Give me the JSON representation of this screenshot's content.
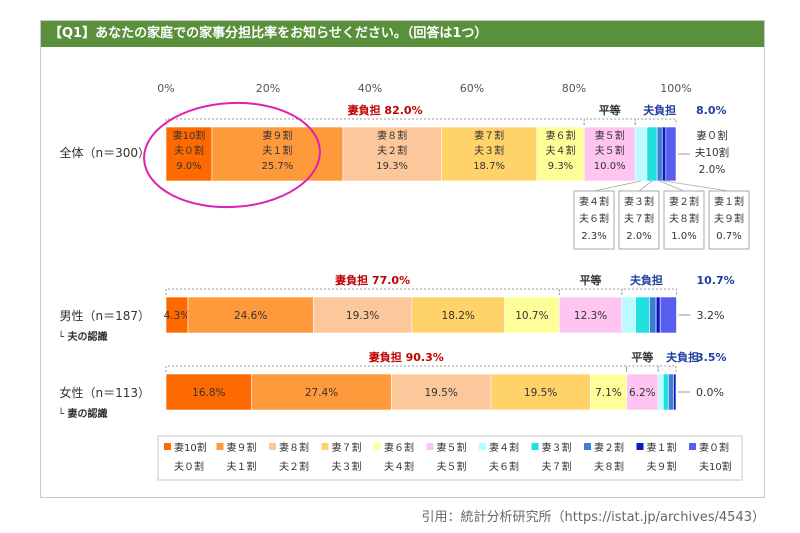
{
  "title": "【Q1】あなたの家庭での家事分担比率をお知らせください。（回答は1つ）",
  "citation": "引用：統計分析研究所（https://istat.jp/archives/4543）",
  "chart_data": {
    "type": "bar",
    "orientation": "horizontal",
    "stacked": true,
    "xlim": [
      0,
      100
    ],
    "x_ticks": [
      "0%",
      "20%",
      "40%",
      "60%",
      "80%",
      "100%"
    ],
    "rows": [
      {
        "label": "全体（n＝300）",
        "sublabel": "",
        "values": [
          9.0,
          25.7,
          19.3,
          18.7,
          9.3,
          10.0,
          2.3,
          2.0,
          1.0,
          0.7,
          2.0
        ],
        "inner_labels": [
          "妻10割\n夫０割\n9.0%",
          "妻９割\n夫１割\n25.7%",
          "妻８割\n夫２割\n19.3%",
          "妻７割\n夫３割\n18.7%",
          "妻６割\n夫４割\n9.3%",
          "妻５割\n夫５割\n10.0%",
          "",
          "",
          "",
          "",
          ""
        ],
        "callouts": [
          "妻４割\n夫６割\n2.3%",
          "妻３割\n夫７割\n2.0%",
          "妻２割\n夫８割\n1.0%",
          "妻１割\n夫９割\n0.7%"
        ],
        "right_label": "妻０割\n夫10割\n2.0%",
        "wife_share": "妻負担 82.0%",
        "equal": "平等",
        "husband_share": "夫負担",
        "husband_value": "8.0%"
      },
      {
        "label": "男性（n＝187）",
        "sublabel": "└ 夫の認識",
        "values": [
          4.3,
          24.6,
          19.3,
          18.2,
          10.7,
          12.3,
          2.7,
          2.7,
          1.3,
          0.8,
          3.2
        ],
        "inner_labels": [
          "4.3%",
          "24.6%",
          "19.3%",
          "18.2%",
          "10.7%",
          "12.3%",
          "",
          "",
          "",
          "",
          ""
        ],
        "right_label": "3.2%",
        "wife_share": "妻負担 77.0%",
        "equal": "平等",
        "husband_share": "夫負担",
        "husband_value": "10.7%"
      },
      {
        "label": "女性（n＝113）",
        "sublabel": "└ 妻の認識",
        "values": [
          16.8,
          27.4,
          19.5,
          19.5,
          7.1,
          6.2,
          1.0,
          1.0,
          1.0,
          0.5,
          0.0
        ],
        "inner_labels": [
          "16.8%",
          "27.4%",
          "19.5%",
          "19.5%",
          "7.1%",
          "6.2%",
          "",
          "",
          "",
          "",
          ""
        ],
        "right_label": "0.0%",
        "wife_share": "妻負担 90.3%",
        "equal": "平等",
        "husband_share": "夫負担",
        "husband_value": "3.5%"
      }
    ],
    "legend": [
      {
        "line1": "妻10割",
        "line2": "夫０割",
        "color": "#ff6a00"
      },
      {
        "line1": "妻９割",
        "line2": "夫１割",
        "color": "#ff9a3c"
      },
      {
        "line1": "妻８割",
        "line2": "夫２割",
        "color": "#fcc79a"
      },
      {
        "line1": "妻７割",
        "line2": "夫３割",
        "color": "#ffd36a"
      },
      {
        "line1": "妻６割",
        "line2": "夫４割",
        "color": "#ffff99"
      },
      {
        "line1": "妻５割",
        "line2": "夫５割",
        "color": "#ffc4f0"
      },
      {
        "line1": "妻４割",
        "line2": "夫６割",
        "color": "#b9fbff"
      },
      {
        "line1": "妻３割",
        "line2": "夫７割",
        "color": "#20e0e0"
      },
      {
        "line1": "妻２割",
        "line2": "夫８割",
        "color": "#3c7dd9"
      },
      {
        "line1": "妻１割",
        "line2": "夫９割",
        "color": "#0a1bbd"
      },
      {
        "line1": "妻０割",
        "line2": "夫10割",
        "color": "#5a5ef0"
      }
    ],
    "annotation_color": "#e020b0",
    "wife_label_color": "#c00000",
    "husband_label_color": "#1f3fa0"
  }
}
